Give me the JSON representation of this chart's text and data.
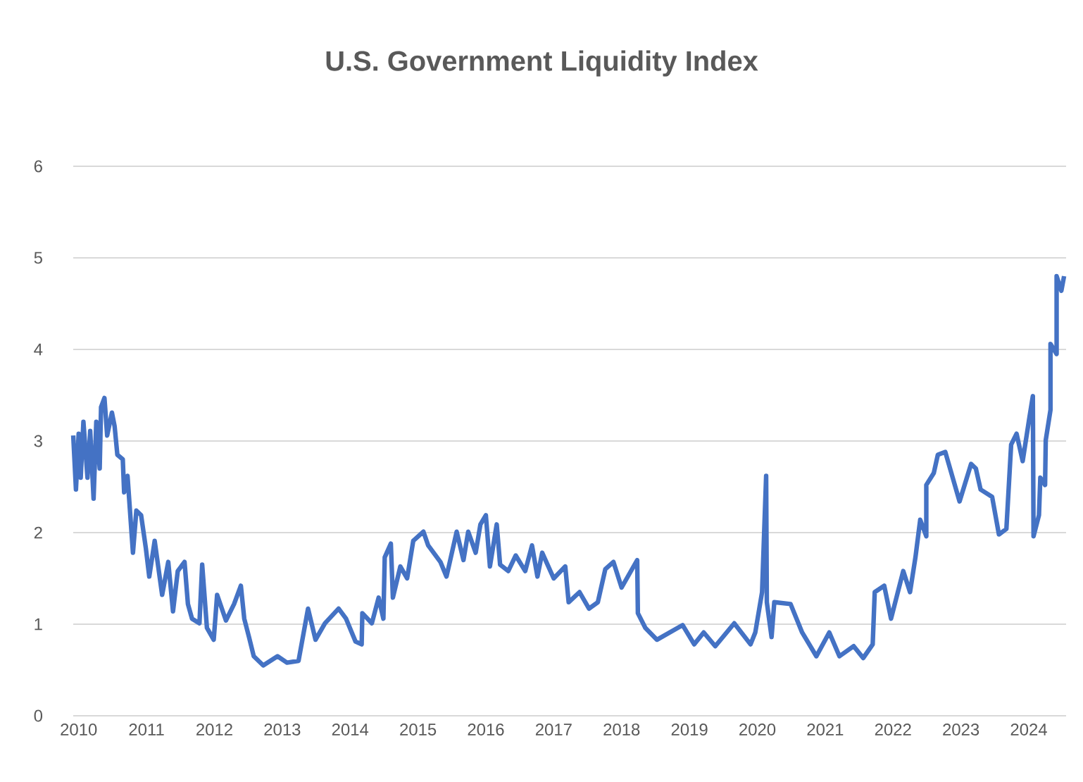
{
  "chart_data": {
    "type": "line",
    "title": "U.S. Government Liquidity Index",
    "series": [
      {
        "color": "#4472c4",
        "line_style": "solid",
        "marker": "none",
        "x": [
          2009.92,
          2009.96,
          2010.0,
          2010.03,
          2010.07,
          2010.13,
          2010.17,
          2010.22,
          2010.26,
          2010.31,
          2010.33,
          2010.38,
          2010.42,
          2010.49,
          2010.53,
          2010.57,
          2010.65,
          2010.67,
          2010.72,
          2010.8,
          2010.85,
          2010.92,
          2010.99,
          2011.04,
          2011.12,
          2011.23,
          2011.32,
          2011.39,
          2011.46,
          2011.56,
          2011.61,
          2011.67,
          2011.78,
          2011.82,
          2011.89,
          2011.99,
          2012.04,
          2012.17,
          2012.29,
          2012.39,
          2012.44,
          2012.51,
          2012.58,
          2012.72,
          2012.93,
          2013.07,
          2013.24,
          2013.38,
          2013.49,
          2013.63,
          2013.83,
          2013.94,
          2014.08,
          2014.17,
          2014.18,
          2014.32,
          2014.42,
          2014.49,
          2014.51,
          2014.6,
          2014.63,
          2014.74,
          2014.84,
          2014.93,
          2015.08,
          2015.15,
          2015.33,
          2015.42,
          2015.57,
          2015.67,
          2015.74,
          2015.85,
          2015.92,
          2016.0,
          2016.06,
          2016.16,
          2016.21,
          2016.33,
          2016.44,
          2016.58,
          2016.68,
          2016.76,
          2016.83,
          2017.0,
          2017.17,
          2017.22,
          2017.38,
          2017.52,
          2017.65,
          2017.76,
          2017.88,
          2018.0,
          2018.23,
          2018.24,
          2018.35,
          2018.52,
          2018.9,
          2019.07,
          2019.21,
          2019.38,
          2019.66,
          2019.9,
          2019.97,
          2020.07,
          2020.13,
          2020.14,
          2020.21,
          2020.25,
          2020.49,
          2020.66,
          2020.87,
          2021.06,
          2021.21,
          2021.42,
          2021.56,
          2021.7,
          2021.73,
          2021.87,
          2021.97,
          2022.15,
          2022.25,
          2022.33,
          2022.4,
          2022.49,
          2022.49,
          2022.6,
          2022.66,
          2022.77,
          2022.98,
          2023.15,
          2023.22,
          2023.29,
          2023.46,
          2023.56,
          2023.67,
          2023.74,
          2023.82,
          2023.91,
          2024.01,
          2024.06,
          2024.07,
          2024.15,
          2024.17,
          2024.24,
          2024.25,
          2024.32,
          2024.32,
          2024.41,
          2024.41,
          2024.48,
          2024.52
        ],
        "values": [
          3.06,
          2.47,
          3.08,
          2.6,
          3.21,
          2.6,
          3.11,
          2.37,
          3.21,
          2.7,
          3.37,
          3.47,
          3.06,
          3.31,
          3.16,
          2.85,
          2.8,
          2.44,
          2.62,
          1.78,
          2.24,
          2.19,
          1.83,
          1.52,
          1.91,
          1.32,
          1.68,
          1.14,
          1.58,
          1.68,
          1.22,
          1.06,
          1.01,
          1.65,
          0.96,
          0.83,
          1.32,
          1.04,
          1.22,
          1.42,
          1.06,
          0.86,
          0.65,
          0.55,
          0.65,
          0.58,
          0.6,
          1.17,
          0.83,
          1.01,
          1.17,
          1.06,
          0.81,
          0.78,
          1.12,
          1.01,
          1.29,
          1.06,
          1.73,
          1.88,
          1.29,
          1.63,
          1.5,
          1.91,
          2.01,
          1.86,
          1.68,
          1.52,
          2.01,
          1.7,
          2.01,
          1.78,
          2.09,
          2.19,
          1.63,
          2.09,
          1.65,
          1.58,
          1.75,
          1.58,
          1.86,
          1.52,
          1.78,
          1.5,
          1.63,
          1.24,
          1.35,
          1.17,
          1.24,
          1.6,
          1.68,
          1.4,
          1.7,
          1.12,
          0.96,
          0.83,
          0.99,
          0.78,
          0.91,
          0.76,
          1.01,
          0.78,
          0.91,
          1.35,
          2.62,
          1.24,
          0.86,
          1.24,
          1.22,
          0.91,
          0.65,
          0.91,
          0.65,
          0.76,
          0.63,
          0.78,
          1.35,
          1.42,
          1.06,
          1.58,
          1.35,
          1.73,
          2.14,
          1.96,
          2.52,
          2.65,
          2.85,
          2.88,
          2.34,
          2.75,
          2.7,
          2.47,
          2.39,
          1.98,
          2.04,
          2.96,
          3.08,
          2.78,
          3.26,
          3.49,
          1.96,
          2.19,
          2.6,
          2.52,
          3.01,
          3.34,
          4.06,
          3.95,
          4.8,
          4.64,
          4.8
        ]
      }
    ],
    "xlim": [
      2009.92,
      2024.55
    ],
    "xticks": [
      2010,
      2011,
      2012,
      2013,
      2014,
      2015,
      2016,
      2017,
      2018,
      2019,
      2020,
      2021,
      2022,
      2023,
      2024
    ],
    "ylim": [
      0,
      6
    ],
    "yticks": [
      0,
      1,
      2,
      3,
      4,
      5,
      6
    ],
    "grid": "y"
  }
}
